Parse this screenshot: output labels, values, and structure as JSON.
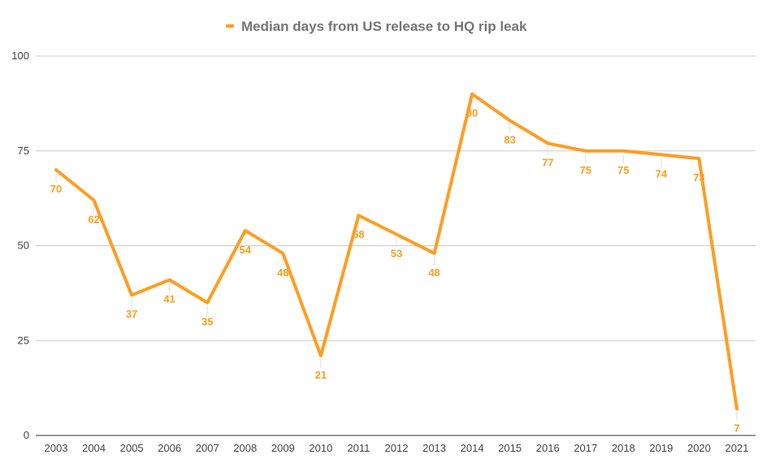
{
  "chart_data": {
    "type": "line",
    "title": "",
    "xlabel": "",
    "ylabel": "",
    "categories": [
      "2003",
      "2004",
      "2005",
      "2006",
      "2007",
      "2008",
      "2009",
      "2010",
      "2011",
      "2012",
      "2013",
      "2014",
      "2015",
      "2016",
      "2017",
      "2018",
      "2019",
      "2020",
      "2021"
    ],
    "series": [
      {
        "name": "Median days from US release to HQ rip leak",
        "values": [
          70,
          62,
          37,
          41,
          35,
          54,
          48,
          21,
          58,
          53,
          48,
          90,
          83,
          77,
          75,
          75,
          74,
          73,
          7
        ],
        "color": "#ff9d21"
      }
    ],
    "ylim": [
      0,
      100
    ],
    "yticks": [
      0,
      25,
      50,
      75,
      100
    ],
    "grid": true,
    "legend_position": "top",
    "data_labels": true
  }
}
